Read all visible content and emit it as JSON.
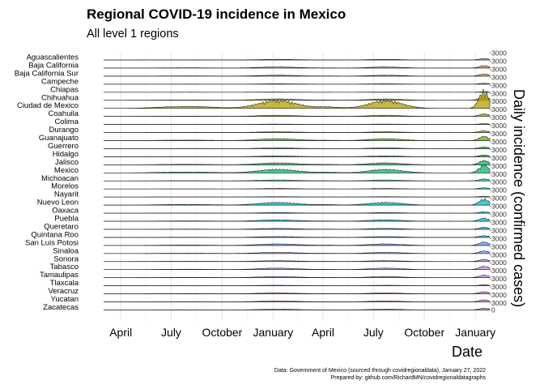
{
  "chart_data": {
    "type": "area",
    "title": "Regional COVID-19 incidence in Mexico",
    "subtitle": "All level 1 regions",
    "xlabel": "Date",
    "ylabel": "Daily incidence (confirmed cases)",
    "x_ticks": [
      "April",
      "July",
      "October",
      "January",
      "April",
      "July",
      "October",
      "January"
    ],
    "x_tick_dates": [
      "2020-04-01",
      "2020-07-01",
      "2020-10-01",
      "2021-01-01",
      "2021-04-01",
      "2021-07-01",
      "2021-10-01",
      "2022-01-01"
    ],
    "x_range": [
      "2020-03-01",
      "2022-01-27"
    ],
    "y_tick_value": 3000,
    "bottom_tick_value": 0,
    "grid": true,
    "series": [
      {
        "name": "Aguascalientes",
        "scale": 0.08,
        "color": "#f8766d"
      },
      {
        "name": "Baja California",
        "scale": 0.14,
        "color": "#f27d52"
      },
      {
        "name": "Baja California Sur",
        "scale": 0.12,
        "color": "#e7861b"
      },
      {
        "name": "Campeche",
        "scale": 0.05,
        "color": "#db8e00"
      },
      {
        "name": "Chiapas",
        "scale": 0.03,
        "color": "#cd9600"
      },
      {
        "name": "Chihuahua",
        "scale": 0.18,
        "color": "#be9c00"
      },
      {
        "name": "Ciudad de Mexico",
        "scale": 1.0,
        "color": "#b3a000"
      },
      {
        "name": "Coahuila",
        "scale": 0.15,
        "color": "#9ea700"
      },
      {
        "name": "Colima",
        "scale": 0.05,
        "color": "#8bab00"
      },
      {
        "name": "Durango",
        "scale": 0.1,
        "color": "#6bb100"
      },
      {
        "name": "Guanajuato",
        "scale": 0.25,
        "color": "#53b400"
      },
      {
        "name": "Guerrero",
        "scale": 0.1,
        "color": "#00b81f"
      },
      {
        "name": "Hidalgo",
        "scale": 0.1,
        "color": "#00ba42"
      },
      {
        "name": "Jalisco",
        "scale": 0.25,
        "color": "#00bc59"
      },
      {
        "name": "Mexico",
        "scale": 0.45,
        "color": "#00be6c"
      },
      {
        "name": "Michoacan",
        "scale": 0.12,
        "color": "#00c08b"
      },
      {
        "name": "Morelos",
        "scale": 0.07,
        "color": "#00c1a3"
      },
      {
        "name": "Nayarit",
        "scale": 0.05,
        "color": "#00c0b8"
      },
      {
        "name": "Nuevo Leon",
        "scale": 0.35,
        "color": "#00bfc4"
      },
      {
        "name": "Oaxaca",
        "scale": 0.08,
        "color": "#00bbdb"
      },
      {
        "name": "Puebla",
        "scale": 0.18,
        "color": "#00b6eb"
      },
      {
        "name": "Queretaro",
        "scale": 0.12,
        "color": "#00b0f6"
      },
      {
        "name": "Quintana Roo",
        "scale": 0.1,
        "color": "#35a2ff"
      },
      {
        "name": "San Luis Potosi",
        "scale": 0.2,
        "color": "#619cff"
      },
      {
        "name": "Sinaloa",
        "scale": 0.15,
        "color": "#8b93ff"
      },
      {
        "name": "Sonora",
        "scale": 0.12,
        "color": "#a58aff"
      },
      {
        "name": "Tabasco",
        "scale": 0.2,
        "color": "#b983ff"
      },
      {
        "name": "Tamaulipas",
        "scale": 0.15,
        "color": "#c77cff"
      },
      {
        "name": "Tlaxcala",
        "scale": 0.06,
        "color": "#d674f7"
      },
      {
        "name": "Veracruz",
        "scale": 0.12,
        "color": "#e76bf3"
      },
      {
        "name": "Yucatan",
        "scale": 0.12,
        "color": "#f066ea"
      },
      {
        "name": "Zacatecas",
        "scale": 0.1,
        "color": "#fb61d7"
      }
    ]
  },
  "caption": {
    "line1": "Data: Government of Mexico (sourced through covidregionaldata), January 27, 2022",
    "line2": "Prepared by: github.com/RichardMN/covidregionaldatagraphs"
  }
}
